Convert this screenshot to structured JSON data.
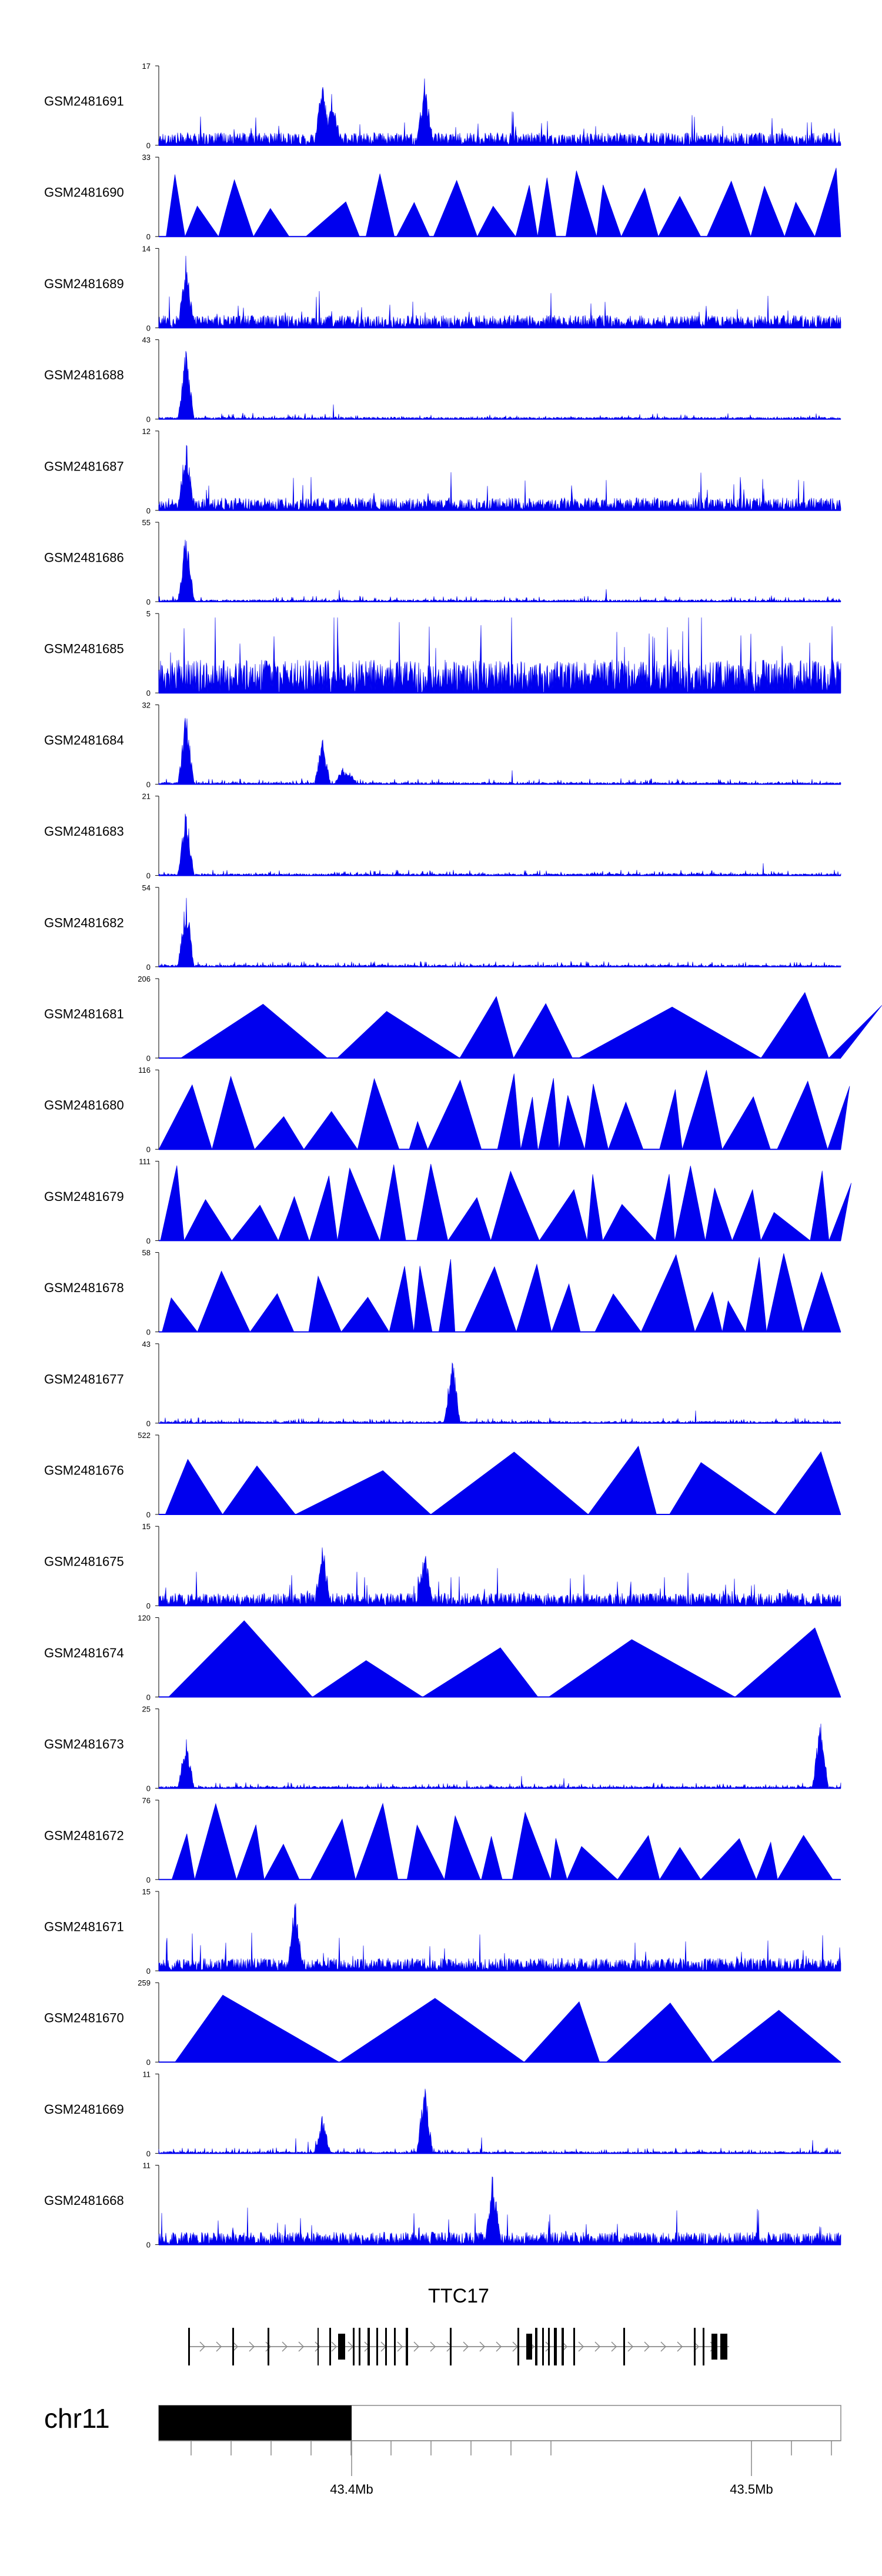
{
  "chart_data": {
    "type": "area",
    "tracks": [
      {
        "name": "GSM2481691",
        "ymax": "17",
        "style": "dense",
        "peaks": [
          [
            0.24,
            0.9
          ],
          [
            0.255,
            0.75
          ],
          [
            0.39,
            0.95
          ]
        ]
      },
      {
        "name": "GSM2481690",
        "ymax": "33",
        "style": "triangles"
      },
      {
        "name": "GSM2481689",
        "ymax": "14",
        "style": "dense",
        "peaks": [
          [
            0.04,
            0.95
          ]
        ]
      },
      {
        "name": "GSM2481688",
        "ymax": "43",
        "style": "dense_low",
        "peaks": [
          [
            0.04,
            0.95
          ]
        ]
      },
      {
        "name": "GSM2481687",
        "ymax": "12",
        "style": "dense",
        "peaks": [
          [
            0.04,
            0.95
          ]
        ]
      },
      {
        "name": "GSM2481686",
        "ymax": "55",
        "style": "dense_low",
        "peaks": [
          [
            0.04,
            0.95
          ]
        ]
      },
      {
        "name": "GSM2481685",
        "ymax": "5",
        "style": "dense_high"
      },
      {
        "name": "GSM2481684",
        "ymax": "32",
        "style": "dense_low",
        "peaks": [
          [
            0.04,
            0.95
          ],
          [
            0.24,
            0.6
          ],
          [
            0.27,
            0.25
          ],
          [
            0.28,
            0.15
          ]
        ]
      },
      {
        "name": "GSM2481683",
        "ymax": "21",
        "style": "dense_low",
        "peaks": [
          [
            0.04,
            0.9
          ]
        ]
      },
      {
        "name": "GSM2481682",
        "ymax": "54",
        "style": "dense_low",
        "peaks": [
          [
            0.04,
            0.95
          ]
        ]
      },
      {
        "name": "GSM2481681",
        "ymax": "206",
        "style": "triangles_sparse"
      },
      {
        "name": "GSM2481680",
        "ymax": "116",
        "style": "triangles"
      },
      {
        "name": "GSM2481679",
        "ymax": "111",
        "style": "triangles"
      },
      {
        "name": "GSM2481678",
        "ymax": "58",
        "style": "triangles"
      },
      {
        "name": "GSM2481677",
        "ymax": "43",
        "style": "dense_low",
        "peaks": [
          [
            0.43,
            0.95
          ]
        ]
      },
      {
        "name": "GSM2481676",
        "ymax": "522",
        "style": "triangles_sparse"
      },
      {
        "name": "GSM2481675",
        "ymax": "15",
        "style": "dense",
        "peaks": [
          [
            0.24,
            0.9
          ],
          [
            0.39,
            0.8
          ]
        ]
      },
      {
        "name": "GSM2481674",
        "ymax": "120",
        "style": "triangles_sparse"
      },
      {
        "name": "GSM2481673",
        "ymax": "25",
        "style": "dense_low",
        "peaks": [
          [
            0.04,
            0.7
          ],
          [
            0.97,
            0.95
          ]
        ]
      },
      {
        "name": "GSM2481672",
        "ymax": "76",
        "style": "triangles"
      },
      {
        "name": "GSM2481671",
        "ymax": "15",
        "style": "dense",
        "peaks": [
          [
            0.2,
            0.95
          ]
        ]
      },
      {
        "name": "GSM2481670",
        "ymax": "259",
        "style": "triangles_sparse"
      },
      {
        "name": "GSM2481669",
        "ymax": "11",
        "style": "dense_low",
        "peaks": [
          [
            0.39,
            0.95
          ],
          [
            0.24,
            0.5
          ]
        ]
      },
      {
        "name": "GSM2481668",
        "ymax": "11",
        "style": "dense",
        "peaks": [
          [
            0.49,
            0.95
          ]
        ]
      }
    ],
    "gene": {
      "name": "TTC17",
      "strand": "+"
    },
    "chromosome": {
      "name": "chr11",
      "ticks": [
        "43.4Mb",
        "43.5Mb"
      ]
    }
  }
}
